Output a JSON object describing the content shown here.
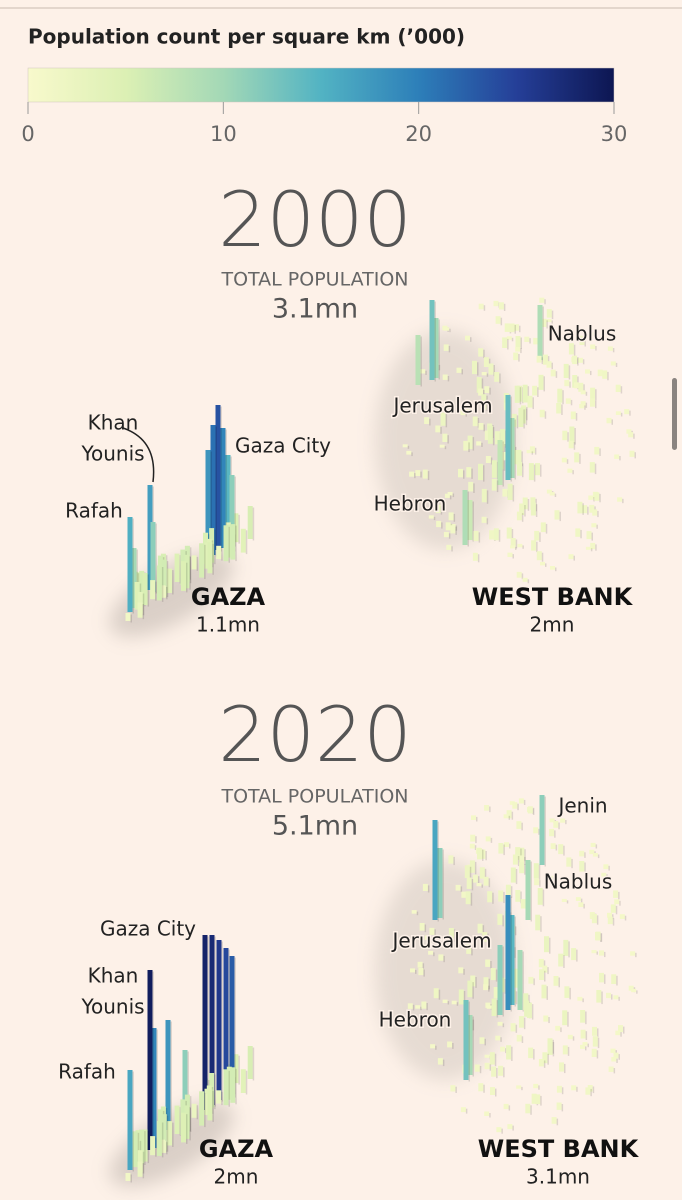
{
  "legend": {
    "title": "Population count per square km (’000)",
    "ticks": [
      0,
      10,
      20,
      30
    ],
    "range": [
      0,
      30
    ],
    "colors": [
      "#f8f9cc",
      "#dcf0b4",
      "#a3d8b6",
      "#52b3c3",
      "#2d7fb9",
      "#253f98",
      "#0d1652"
    ]
  },
  "panels": [
    {
      "year": "2000",
      "total_label": "TOTAL POPULATION",
      "total": "3.1mn",
      "regions": [
        {
          "name": "GAZA",
          "population": "1.1mn"
        },
        {
          "name": "WEST BANK",
          "population": "2mn"
        }
      ],
      "places": [
        [
          "Khan",
          "Younis"
        ],
        [
          "Rafah"
        ],
        [
          "Gaza City"
        ],
        [
          "Nablus"
        ],
        [
          "Jerusalem"
        ],
        [
          "Hebron"
        ]
      ]
    },
    {
      "year": "2020",
      "total_label": "TOTAL POPULATION",
      "total": "5.1mn",
      "regions": [
        {
          "name": "GAZA",
          "population": "2mn"
        },
        {
          "name": "WEST BANK",
          "population": "3.1mn"
        }
      ],
      "places": [
        [
          "Gaza City"
        ],
        [
          "Khan",
          "Younis"
        ],
        [
          "Rafah"
        ],
        [
          "Jenin"
        ],
        [
          "Nablus"
        ],
        [
          "Jerusalem"
        ],
        [
          "Hebron"
        ]
      ]
    }
  ]
}
